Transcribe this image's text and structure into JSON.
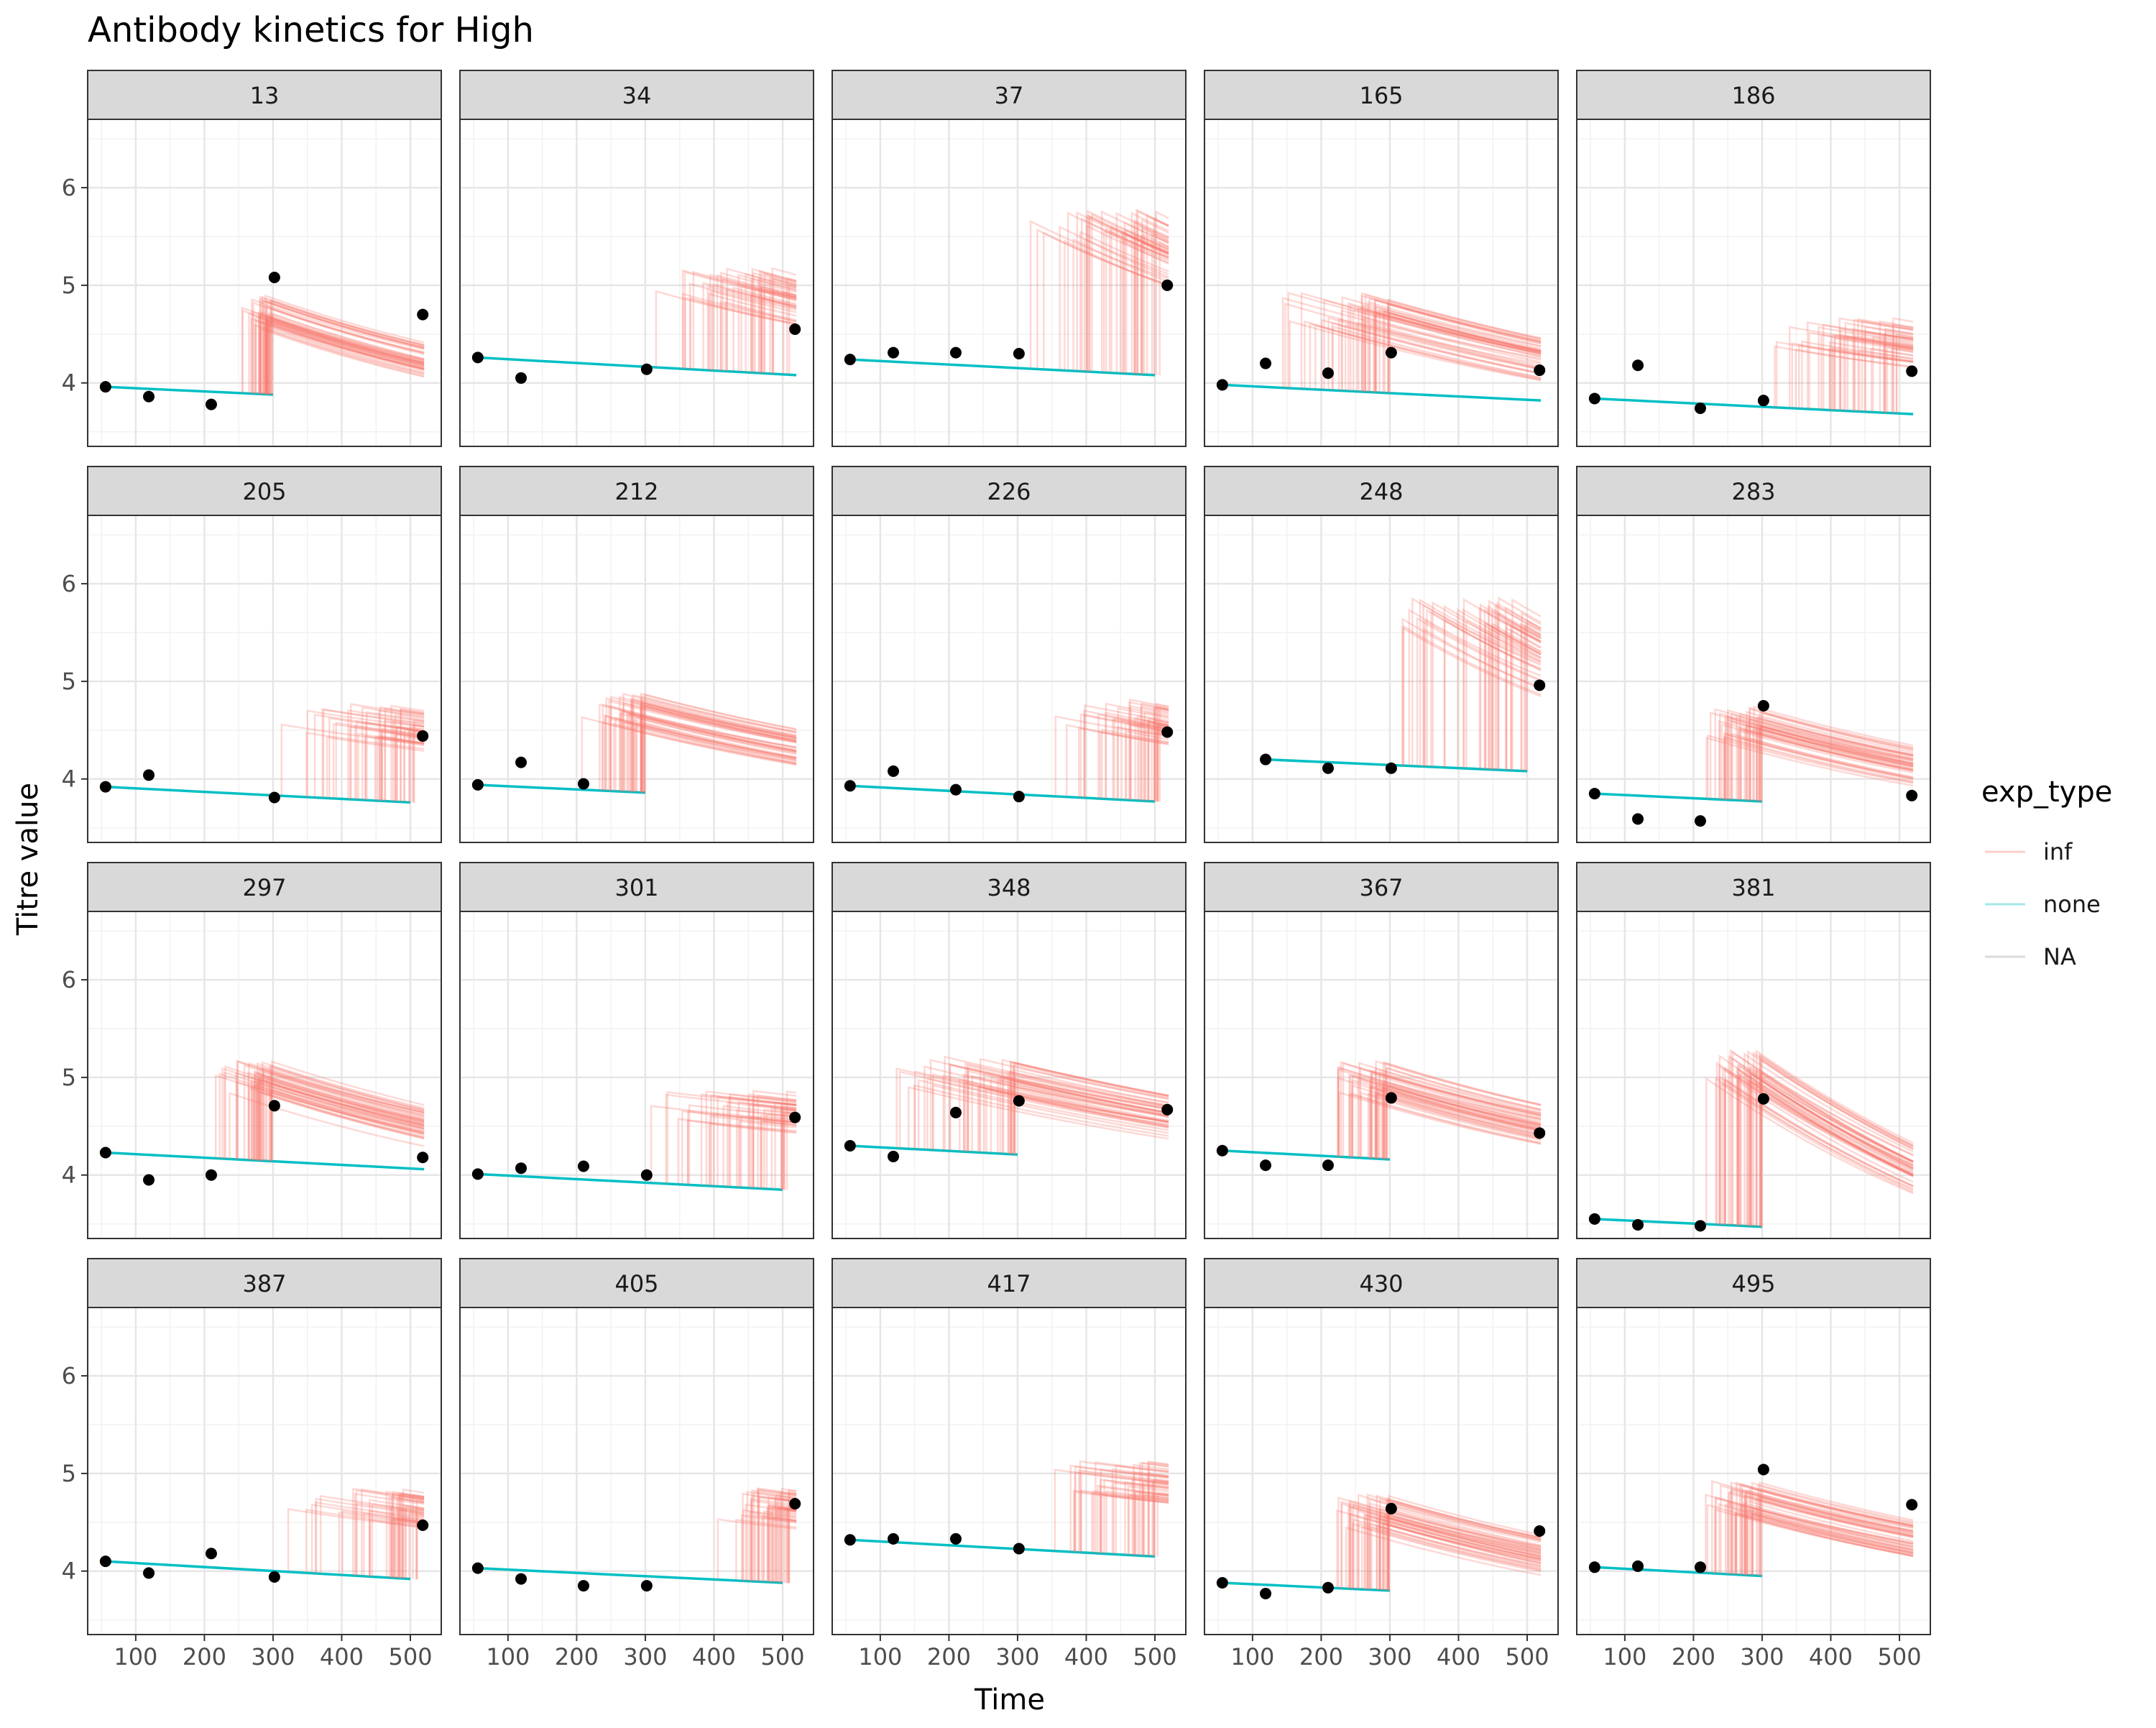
{
  "chart_data": {
    "type": "line",
    "title": "Antibody kinetics for High",
    "xlabel": "Time",
    "ylabel": "Titre value",
    "xlim": [
      30,
      545
    ],
    "ylim": [
      3.35,
      6.7
    ],
    "x_ticks": [
      100,
      200,
      300,
      400,
      500
    ],
    "y_ticks": [
      4,
      5,
      6
    ],
    "grid": true,
    "facet_layout": {
      "rows": 4,
      "cols": 5,
      "shared_axes": true
    },
    "legend": {
      "title": "exp_type",
      "position": "right",
      "entries": [
        {
          "label": "inf",
          "color": "#F8766D"
        },
        {
          "label": "none",
          "color": "#00BFC4"
        },
        {
          "label": "NA",
          "color": "#999999"
        }
      ]
    },
    "colors": {
      "inf": "#F8766D",
      "none": "#00BFC4",
      "points": "#000000"
    },
    "observation_times": [
      56,
      119,
      210,
      302,
      518
    ],
    "panels": [
      {
        "id": "13",
        "obs": [
          3.96,
          3.86,
          3.78,
          5.08,
          4.7
        ],
        "none": {
          "x": [
            56,
            300
          ],
          "y": [
            3.96,
            3.88
          ]
        },
        "inf": {
          "t": [
            250,
            300
          ],
          "peak": 4.72,
          "end": 4.18,
          "end_x": 520
        }
      },
      {
        "id": "34",
        "obs": [
          4.26,
          4.05,
          null,
          4.14,
          4.55
        ],
        "none": {
          "x": [
            56,
            520
          ],
          "y": [
            4.26,
            4.08
          ]
        },
        "inf": {
          "t": [
            300,
            510
          ],
          "peak": 5.0,
          "end": 4.65,
          "end_x": 520
        }
      },
      {
        "id": "37",
        "obs": [
          4.24,
          4.31,
          4.31,
          4.3,
          5.0
        ],
        "none": {
          "x": [
            56,
            500
          ],
          "y": [
            4.24,
            4.08
          ]
        },
        "inf": {
          "t": [
            290,
            510
          ],
          "peak": 5.6,
          "end": 4.95,
          "end_x": 520
        }
      },
      {
        "id": "165",
        "obs": [
          3.98,
          4.2,
          4.1,
          4.31,
          4.13
        ],
        "none": {
          "x": [
            56,
            520
          ],
          "y": [
            3.98,
            3.82
          ]
        },
        "inf": {
          "t": [
            120,
            300
          ],
          "peak": 4.75,
          "end": 4.1,
          "end_x": 520
        }
      },
      {
        "id": "186",
        "obs": [
          3.84,
          4.18,
          3.74,
          3.82,
          4.12
        ],
        "none": {
          "x": [
            56,
            520
          ],
          "y": [
            3.84,
            3.68
          ]
        },
        "inf": {
          "t": [
            300,
            500
          ],
          "peak": 4.5,
          "end": 4.28,
          "end_x": 520
        }
      },
      {
        "id": "205",
        "obs": [
          3.92,
          4.04,
          null,
          3.81,
          4.44
        ],
        "none": {
          "x": [
            56,
            500
          ],
          "y": [
            3.92,
            3.76
          ]
        },
        "inf": {
          "t": [
            300,
            510
          ],
          "peak": 4.6,
          "end": 4.4,
          "end_x": 520
        }
      },
      {
        "id": "212",
        "obs": [
          3.94,
          4.17,
          3.95,
          null,
          null
        ],
        "none": {
          "x": [
            56,
            300
          ],
          "y": [
            3.94,
            3.86
          ]
        },
        "inf": {
          "t": [
            200,
            300
          ],
          "peak": 4.7,
          "end": 4.22,
          "end_x": 520
        }
      },
      {
        "id": "226",
        "obs": [
          3.93,
          4.08,
          3.89,
          3.82,
          4.48
        ],
        "none": {
          "x": [
            56,
            500
          ],
          "y": [
            3.93,
            3.77
          ]
        },
        "inf": {
          "t": [
            350,
            510
          ],
          "peak": 4.65,
          "end": 4.45,
          "end_x": 520
        }
      },
      {
        "id": "248",
        "obs": [
          null,
          4.2,
          4.11,
          4.11,
          4.96
        ],
        "none": {
          "x": [
            119,
            500
          ],
          "y": [
            4.2,
            4.08
          ]
        },
        "inf": {
          "t": [
            300,
            510
          ],
          "peak": 5.7,
          "end": 4.95,
          "end_x": 520
        }
      },
      {
        "id": "283",
        "obs": [
          3.85,
          3.59,
          3.57,
          4.75,
          3.83
        ],
        "none": {
          "x": [
            56,
            300
          ],
          "y": [
            3.85,
            3.77
          ]
        },
        "inf": {
          "t": [
            210,
            300
          ],
          "peak": 4.58,
          "end": 4.08,
          "end_x": 520
        }
      },
      {
        "id": "297",
        "obs": [
          4.23,
          3.95,
          4.0,
          4.71,
          4.18
        ],
        "none": {
          "x": [
            56,
            520
          ],
          "y": [
            4.23,
            4.06
          ]
        },
        "inf": {
          "t": [
            210,
            300
          ],
          "peak": 5.0,
          "end": 4.42,
          "end_x": 520
        }
      },
      {
        "id": "301",
        "obs": [
          4.01,
          4.07,
          4.09,
          4.0,
          4.59
        ],
        "none": {
          "x": [
            56,
            500
          ],
          "y": [
            4.01,
            3.85
          ]
        },
        "inf": {
          "t": [
            300,
            510
          ],
          "peak": 4.7,
          "end": 4.55,
          "end_x": 520
        }
      },
      {
        "id": "348",
        "obs": [
          4.3,
          4.19,
          4.64,
          4.76,
          4.67
        ],
        "none": {
          "x": [
            56,
            300
          ],
          "y": [
            4.3,
            4.21
          ]
        },
        "inf": {
          "t": [
            100,
            300
          ],
          "peak": 5.05,
          "end": 4.48,
          "end_x": 520
        }
      },
      {
        "id": "367",
        "obs": [
          4.25,
          4.1,
          4.1,
          4.79,
          4.43
        ],
        "none": {
          "x": [
            56,
            300
          ],
          "y": [
            4.25,
            4.16
          ]
        },
        "inf": {
          "t": [
            210,
            300
          ],
          "peak": 5.0,
          "end": 4.45,
          "end_x": 520
        }
      },
      {
        "id": "381",
        "obs": [
          3.55,
          3.49,
          3.48,
          4.78,
          null
        ],
        "none": {
          "x": [
            56,
            300
          ],
          "y": [
            3.55,
            3.47
          ]
        },
        "inf": {
          "t": [
            210,
            300
          ],
          "peak": 5.1,
          "end": 3.9,
          "end_x": 520
        }
      },
      {
        "id": "387",
        "obs": [
          4.1,
          3.98,
          4.18,
          3.94,
          4.47
        ],
        "none": {
          "x": [
            56,
            500
          ],
          "y": [
            4.1,
            3.92
          ]
        },
        "inf": {
          "t": [
            300,
            510
          ],
          "peak": 4.7,
          "end": 4.5,
          "end_x": 520
        }
      },
      {
        "id": "405",
        "obs": [
          4.03,
          3.92,
          3.85,
          3.85,
          4.69
        ],
        "none": {
          "x": [
            56,
            500
          ],
          "y": [
            4.03,
            3.88
          ]
        },
        "inf": {
          "t": [
            400,
            510
          ],
          "peak": 4.7,
          "end": 4.6,
          "end_x": 520
        }
      },
      {
        "id": "417",
        "obs": [
          4.32,
          4.33,
          4.33,
          4.23,
          null
        ],
        "none": {
          "x": [
            56,
            500
          ],
          "y": [
            4.32,
            4.15
          ]
        },
        "inf": {
          "t": [
            320,
            510
          ],
          "peak": 4.95,
          "end": 4.8,
          "end_x": 520
        }
      },
      {
        "id": "430",
        "obs": [
          3.88,
          3.77,
          3.83,
          4.64,
          4.41
        ],
        "none": {
          "x": [
            56,
            300
          ],
          "y": [
            3.88,
            3.8
          ]
        },
        "inf": {
          "t": [
            210,
            300
          ],
          "peak": 4.62,
          "end": 4.1,
          "end_x": 520
        }
      },
      {
        "id": "495",
        "obs": [
          4.04,
          4.05,
          4.04,
          5.04,
          4.68
        ],
        "none": {
          "x": [
            56,
            300
          ],
          "y": [
            4.04,
            3.95
          ]
        },
        "inf": {
          "t": [
            210,
            300
          ],
          "peak": 4.75,
          "end": 4.25,
          "end_x": 520
        }
      }
    ]
  }
}
